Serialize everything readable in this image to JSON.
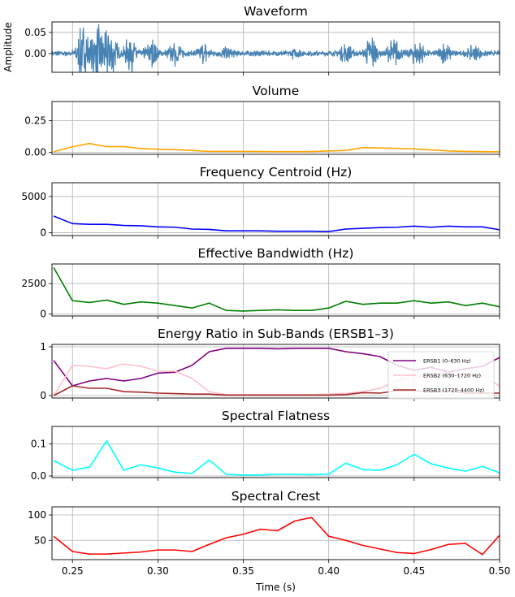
{
  "chart_data": [
    {
      "type": "line",
      "title": "Waveform",
      "ylabel": "Amplitude",
      "xlim": [
        0.238,
        0.5
      ],
      "ylim": [
        -0.045,
        0.075
      ],
      "yticks": [
        0.0,
        0.05
      ],
      "ytick_labels": [
        "0.00",
        "0.05"
      ],
      "grid": true,
      "color": "#4682b4",
      "series": [
        {
          "x": [],
          "y": []
        }
      ],
      "waveform_bursts": [
        {
          "center": 0.256,
          "peak": 0.06
        },
        {
          "center": 0.264,
          "peak": 0.065
        },
        {
          "center": 0.272,
          "peak": 0.07
        },
        {
          "center": 0.284,
          "peak": 0.04
        },
        {
          "center": 0.296,
          "peak": 0.03
        },
        {
          "center": 0.31,
          "peak": 0.025
        },
        {
          "center": 0.327,
          "peak": 0.02
        },
        {
          "center": 0.34,
          "peak": 0.012
        },
        {
          "center": 0.38,
          "peak": 0.008
        },
        {
          "center": 0.41,
          "peak": 0.02
        },
        {
          "center": 0.425,
          "peak": 0.035
        },
        {
          "center": 0.438,
          "peak": 0.03
        },
        {
          "center": 0.452,
          "peak": 0.03
        },
        {
          "center": 0.468,
          "peak": 0.02
        },
        {
          "center": 0.485,
          "peak": 0.015
        }
      ]
    },
    {
      "type": "line",
      "title": "Volume",
      "xlim": [
        0.238,
        0.5
      ],
      "ylim": [
        -0.015,
        0.4
      ],
      "yticks": [
        0.0,
        0.25
      ],
      "ytick_labels": [
        "0.00",
        "0.25"
      ],
      "grid": true,
      "series": [
        {
          "color": "#ffa500",
          "x": [
            0.239,
            0.25,
            0.26,
            0.27,
            0.28,
            0.29,
            0.3,
            0.31,
            0.32,
            0.33,
            0.34,
            0.35,
            0.36,
            0.37,
            0.38,
            0.39,
            0.4,
            0.41,
            0.42,
            0.43,
            0.44,
            0.45,
            0.46,
            0.47,
            0.48,
            0.49,
            0.5
          ],
          "y": [
            0.005,
            0.045,
            0.07,
            0.045,
            0.045,
            0.03,
            0.025,
            0.022,
            0.015,
            0.008,
            0.008,
            0.008,
            0.007,
            0.006,
            0.006,
            0.006,
            0.012,
            0.015,
            0.038,
            0.035,
            0.032,
            0.028,
            0.02,
            0.012,
            0.008,
            0.006,
            0.005
          ]
        }
      ]
    },
    {
      "type": "line",
      "title": "Frequency Centroid (Hz)",
      "xlim": [
        0.238,
        0.5
      ],
      "ylim": [
        -400,
        6900
      ],
      "yticks": [
        0,
        5000
      ],
      "ytick_labels": [
        "0",
        "5000"
      ],
      "grid": true,
      "series": [
        {
          "color": "#0000ff",
          "x": [
            0.239,
            0.25,
            0.26,
            0.27,
            0.28,
            0.29,
            0.3,
            0.31,
            0.32,
            0.33,
            0.34,
            0.35,
            0.36,
            0.37,
            0.38,
            0.39,
            0.4,
            0.41,
            0.42,
            0.43,
            0.44,
            0.45,
            0.46,
            0.47,
            0.48,
            0.49,
            0.5
          ],
          "y": [
            2300,
            1250,
            1150,
            1150,
            1000,
            950,
            800,
            750,
            500,
            450,
            250,
            250,
            250,
            200,
            200,
            200,
            150,
            500,
            600,
            700,
            750,
            900,
            750,
            900,
            800,
            800,
            400
          ]
        }
      ]
    },
    {
      "type": "line",
      "title": "Effective Bandwidth (Hz)",
      "xlim": [
        0.238,
        0.5
      ],
      "ylim": [
        -150,
        4100
      ],
      "yticks": [
        0,
        2500
      ],
      "ytick_labels": [
        "0",
        "2500"
      ],
      "grid": true,
      "series": [
        {
          "color": "#008000",
          "x": [
            0.239,
            0.25,
            0.26,
            0.27,
            0.28,
            0.29,
            0.3,
            0.31,
            0.32,
            0.33,
            0.34,
            0.35,
            0.36,
            0.37,
            0.38,
            0.39,
            0.4,
            0.41,
            0.42,
            0.43,
            0.44,
            0.45,
            0.46,
            0.47,
            0.48,
            0.49,
            0.5
          ],
          "y": [
            3800,
            1100,
            950,
            1150,
            800,
            1000,
            900,
            700,
            500,
            900,
            300,
            250,
            300,
            350,
            300,
            300,
            500,
            1050,
            800,
            900,
            900,
            1100,
            900,
            1000,
            700,
            900,
            600
          ]
        }
      ]
    },
    {
      "type": "line",
      "title": "Energy Ratio in Sub-Bands (ERSB1–3)",
      "xlim": [
        0.238,
        0.5
      ],
      "ylim": [
        -0.05,
        1.05
      ],
      "yticks": [
        0,
        1
      ],
      "ytick_labels": [
        "0",
        "1"
      ],
      "grid": true,
      "legend": "right",
      "series": [
        {
          "name": "ERSB1 (0–630 Hz)",
          "color": "#800080",
          "x": [
            0.239,
            0.25,
            0.26,
            0.27,
            0.28,
            0.29,
            0.3,
            0.31,
            0.32,
            0.33,
            0.34,
            0.35,
            0.36,
            0.37,
            0.38,
            0.39,
            0.4,
            0.41,
            0.42,
            0.43,
            0.44,
            0.45,
            0.46,
            0.47,
            0.48,
            0.49,
            0.5
          ],
          "y": [
            0.72,
            0.2,
            0.3,
            0.35,
            0.3,
            0.35,
            0.46,
            0.48,
            0.62,
            0.9,
            0.97,
            0.97,
            0.97,
            0.96,
            0.97,
            0.97,
            0.97,
            0.9,
            0.86,
            0.8,
            0.62,
            0.52,
            0.58,
            0.48,
            0.55,
            0.6,
            0.78
          ]
        },
        {
          "name": "ERSB2 (630–1720 Hz)",
          "color": "#ffc0cb",
          "x": [
            0.239,
            0.25,
            0.26,
            0.27,
            0.28,
            0.29,
            0.3,
            0.31,
            0.32,
            0.33,
            0.34,
            0.35,
            0.36,
            0.37,
            0.38,
            0.39,
            0.4,
            0.41,
            0.42,
            0.43,
            0.44,
            0.45,
            0.46,
            0.47,
            0.48,
            0.49,
            0.5
          ],
          "y": [
            0.0,
            0.62,
            0.6,
            0.55,
            0.65,
            0.6,
            0.5,
            0.5,
            0.35,
            0.08,
            0.02,
            0.02,
            0.02,
            0.02,
            0.02,
            0.02,
            0.03,
            0.05,
            0.08,
            0.15,
            0.3,
            0.4,
            0.38,
            0.42,
            0.42,
            0.4,
            0.2
          ]
        },
        {
          "name": "ERSB3 (1720–4400 Hz)",
          "color": "#a52a2a",
          "x": [
            0.239,
            0.25,
            0.26,
            0.27,
            0.28,
            0.29,
            0.3,
            0.31,
            0.32,
            0.33,
            0.34,
            0.35,
            0.36,
            0.37,
            0.38,
            0.39,
            0.4,
            0.41,
            0.42,
            0.43,
            0.44,
            0.45,
            0.46,
            0.47,
            0.48,
            0.49,
            0.5
          ],
          "y": [
            0.0,
            0.2,
            0.15,
            0.15,
            0.08,
            0.07,
            0.05,
            0.04,
            0.03,
            0.03,
            0.01,
            0.01,
            0.01,
            0.01,
            0.01,
            0.01,
            0.01,
            0.02,
            0.06,
            0.05,
            0.1,
            0.1,
            0.08,
            0.1,
            0.05,
            0.05,
            0.05
          ]
        }
      ]
    },
    {
      "type": "line",
      "title": "Spectral Flatness",
      "xlim": [
        0.238,
        0.5
      ],
      "ylim": [
        -0.005,
        0.155
      ],
      "yticks": [
        0.0,
        0.1
      ],
      "ytick_labels": [
        "0.0",
        "0.1"
      ],
      "grid": true,
      "series": [
        {
          "color": "#00ffff",
          "x": [
            0.239,
            0.25,
            0.26,
            0.27,
            0.28,
            0.29,
            0.3,
            0.31,
            0.32,
            0.33,
            0.34,
            0.35,
            0.36,
            0.37,
            0.38,
            0.39,
            0.4,
            0.41,
            0.42,
            0.43,
            0.44,
            0.45,
            0.46,
            0.47,
            0.48,
            0.49,
            0.5
          ],
          "y": [
            0.048,
            0.018,
            0.028,
            0.11,
            0.018,
            0.035,
            0.025,
            0.012,
            0.008,
            0.05,
            0.005,
            0.003,
            0.003,
            0.005,
            0.005,
            0.004,
            0.006,
            0.04,
            0.02,
            0.018,
            0.035,
            0.068,
            0.038,
            0.025,
            0.015,
            0.03,
            0.01
          ]
        }
      ]
    },
    {
      "type": "line",
      "title": "Spectral Crest",
      "xlabel": "Time (s)",
      "xlim": [
        0.238,
        0.5
      ],
      "ylim": [
        12,
        116
      ],
      "yticks": [
        50,
        100
      ],
      "ytick_labels": [
        "50",
        "100"
      ],
      "xticks": [
        0.25,
        0.3,
        0.35,
        0.4,
        0.45,
        0.5
      ],
      "xtick_labels": [
        "0.25",
        "0.30",
        "0.35",
        "0.40",
        "0.45",
        "0.50"
      ],
      "grid": true,
      "series": [
        {
          "color": "#ff0000",
          "x": [
            0.239,
            0.25,
            0.26,
            0.27,
            0.28,
            0.29,
            0.3,
            0.31,
            0.32,
            0.33,
            0.34,
            0.35,
            0.36,
            0.37,
            0.38,
            0.39,
            0.4,
            0.41,
            0.42,
            0.43,
            0.44,
            0.45,
            0.46,
            0.47,
            0.48,
            0.49,
            0.5
          ],
          "y": [
            58,
            28,
            23,
            23,
            25,
            27,
            31,
            31,
            28,
            42,
            55,
            62,
            72,
            69,
            88,
            95,
            58,
            50,
            40,
            33,
            26,
            24,
            32,
            42,
            44,
            22,
            60
          ]
        }
      ]
    }
  ]
}
